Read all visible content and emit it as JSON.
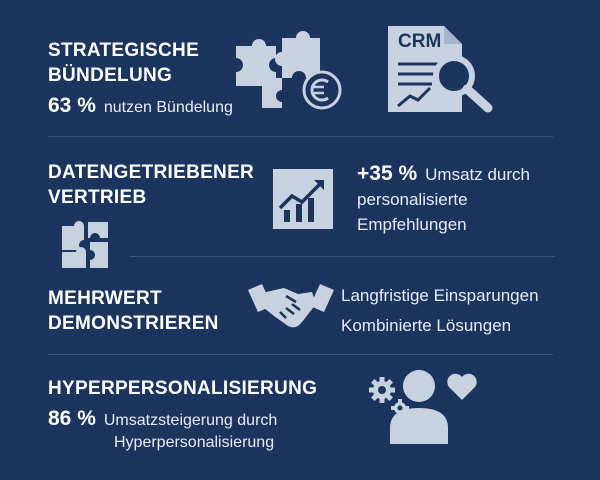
{
  "sections": [
    {
      "heading_line1": "STRATEGISCHE",
      "heading_line2": "BÜNDELUNG",
      "stat_value": "63 %",
      "stat_label": "nutzen Bündelung",
      "icons": [
        "puzzle-pieces-icon",
        "euro-coin-icon",
        "crm-document-icon",
        "magnifier-icon"
      ],
      "crm_label": "CRM"
    },
    {
      "heading_line1": "DATENGETRIEBENER",
      "heading_line2": "VERTRIEB",
      "stat_value": "+35 %",
      "stat_label_line1": "Umsatz durch",
      "stat_label_line2": "personalisierte",
      "stat_label_line3": "Empfehlungen",
      "icons": [
        "puzzle-icon",
        "growth-chart-icon"
      ]
    },
    {
      "heading_line1": "MEHRWERT",
      "heading_line2": "DEMONSTRIEREN",
      "item1": "Langfristige Einsparungen",
      "item2": "Kombinierte Lösungen",
      "icons": [
        "handshake-icon"
      ]
    },
    {
      "heading_line1": "HYPERPERSONALISIERUNG",
      "stat_value": "86 %",
      "stat_label_line1": "Umsatzsteigerung durch",
      "stat_label_line2": "Hyperpersonalisierung",
      "icons": [
        "gears-icon",
        "person-icon",
        "heart-icon"
      ]
    }
  ],
  "colors": {
    "background": "#1b355e",
    "icon": "#c8d1df",
    "divider": "#4a6390",
    "text": "#ffffff"
  }
}
